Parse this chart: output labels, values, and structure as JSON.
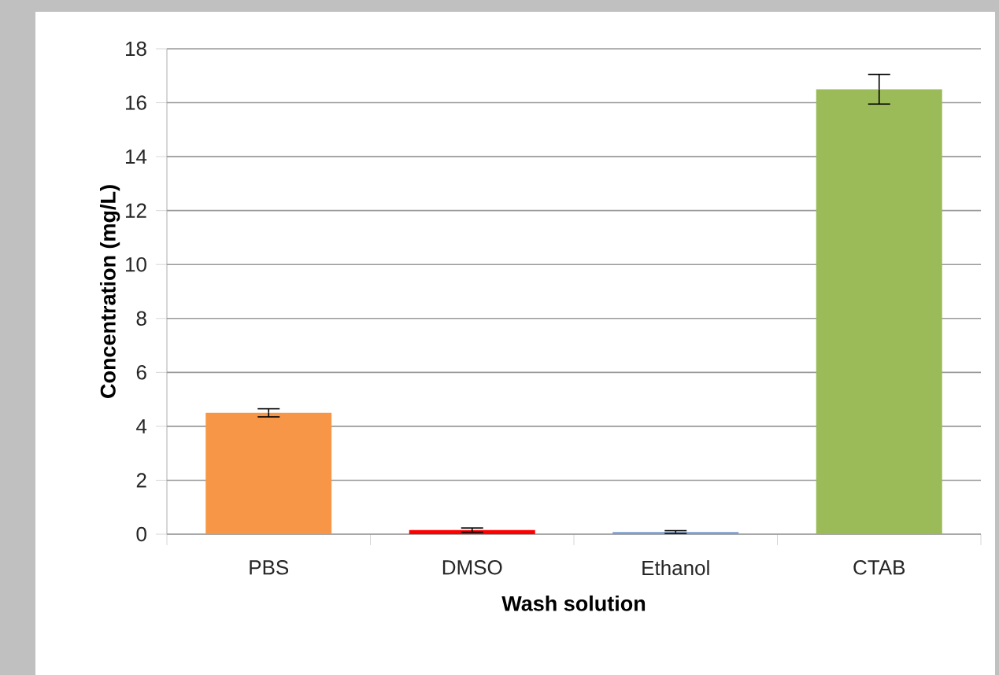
{
  "chart_data": {
    "type": "bar",
    "xlabel": "Wash solution",
    "ylabel": "Concentration (mg/L)",
    "categories": [
      "PBS",
      "DMSO",
      "Ethanol",
      "CTAB"
    ],
    "values": [
      4.5,
      0.15,
      0.08,
      16.5
    ],
    "errors": [
      0.15,
      0.08,
      0.05,
      0.55
    ],
    "colors": [
      "#f79646",
      "#ff0000",
      "#7b9fd0",
      "#9bbb59"
    ],
    "ylim": [
      0,
      18
    ],
    "yticks": [
      0,
      2,
      4,
      6,
      8,
      10,
      12,
      14,
      16,
      18
    ],
    "grid": "y"
  }
}
